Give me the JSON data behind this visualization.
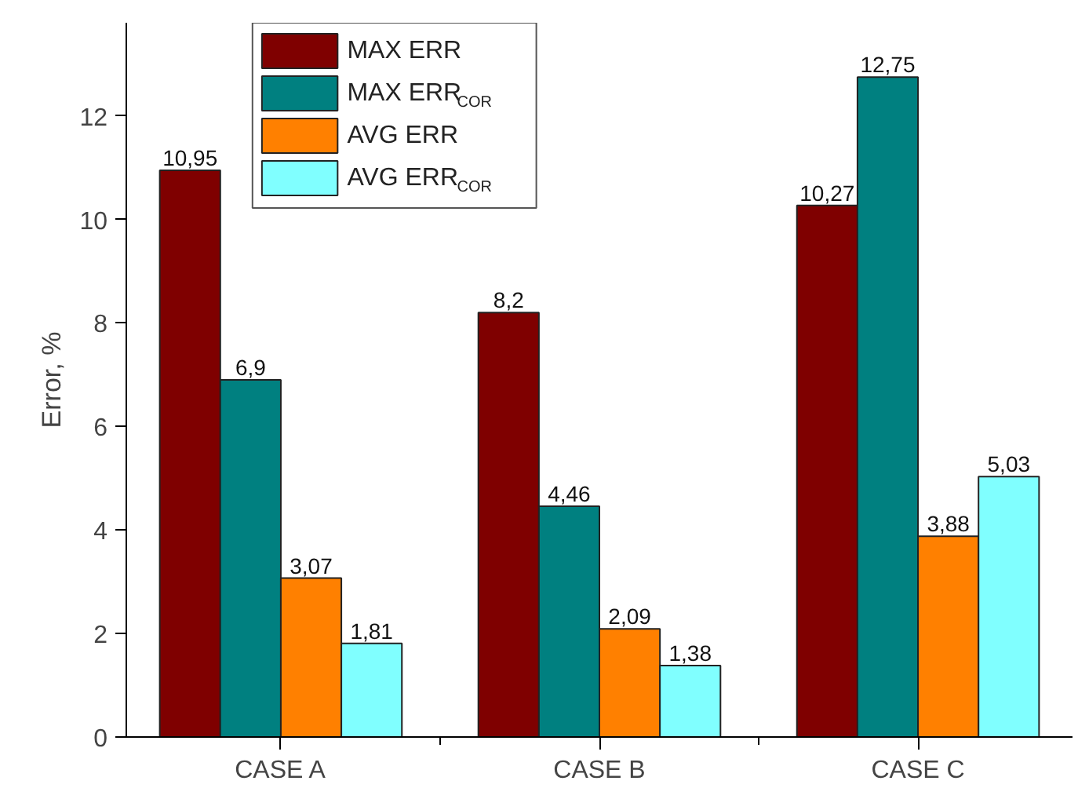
{
  "chart_data": {
    "type": "bar",
    "ylabel": "Error, %",
    "categories": [
      "CASE A",
      "CASE B",
      "CASE C"
    ],
    "series": [
      {
        "name": "MAX ERR",
        "color": "#7f0000",
        "values": [
          10.95,
          8.2,
          10.27
        ],
        "value_labels": [
          "10,95",
          "8,2",
          "10,27"
        ]
      },
      {
        "name": "MAX ERR$_{COR}$",
        "color": "#008080",
        "values": [
          6.9,
          4.46,
          12.75
        ],
        "value_labels": [
          "6,9",
          "4,46",
          "12,75"
        ]
      },
      {
        "name": "AVG ERR",
        "color": "#ff8000",
        "values": [
          3.07,
          2.09,
          3.88
        ],
        "value_labels": [
          "3,07",
          "2,09",
          "3,88"
        ]
      },
      {
        "name": "AVG ERR$_{COR}$",
        "color": "#80ffff",
        "values": [
          1.81,
          1.38,
          5.03
        ],
        "value_labels": [
          "1,81",
          "1,38",
          "5,03"
        ]
      }
    ],
    "ylim": [
      0,
      13.8
    ],
    "yticks": [
      0,
      2,
      4,
      6,
      8,
      10,
      12
    ],
    "grid": false,
    "legend": "top left"
  }
}
